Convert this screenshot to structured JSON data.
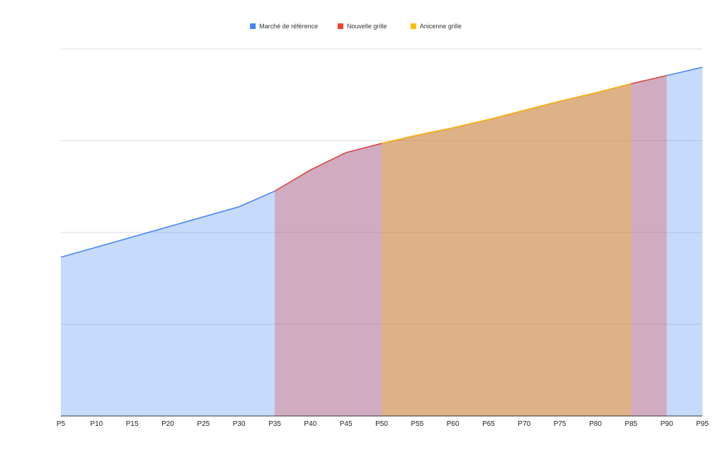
{
  "chart_data": {
    "type": "area",
    "categories": [
      "P5",
      "P10",
      "P15",
      "P20",
      "P25",
      "P30",
      "P35",
      "P40",
      "P45",
      "P50",
      "P55",
      "P60",
      "P65",
      "P70",
      "P75",
      "P80",
      "P85",
      "P90",
      "P95"
    ],
    "ylim": [
      0,
      4
    ],
    "grid": true,
    "legend_position": "top",
    "series": [
      {
        "name": "Marché de référence",
        "color": "#4285f4",
        "values": [
          1.73,
          1.84,
          1.95,
          2.06,
          2.17,
          2.28,
          2.45,
          2.68,
          2.87,
          2.97,
          3.06,
          3.14,
          3.23,
          3.33,
          3.43,
          3.52,
          3.62,
          3.71,
          3.8
        ]
      },
      {
        "name": "Nouvelle grille",
        "color": "#ea4335",
        "values": [
          null,
          null,
          null,
          null,
          null,
          null,
          2.45,
          2.68,
          2.87,
          2.97,
          3.06,
          3.14,
          3.23,
          3.33,
          3.43,
          3.52,
          3.62,
          3.71,
          null
        ]
      },
      {
        "name": "Anicenne grille",
        "color": "#fbbc04",
        "values": [
          null,
          null,
          null,
          null,
          null,
          null,
          null,
          null,
          null,
          2.97,
          3.06,
          3.14,
          3.23,
          3.33,
          3.43,
          3.52,
          3.62,
          null,
          null
        ]
      }
    ]
  }
}
